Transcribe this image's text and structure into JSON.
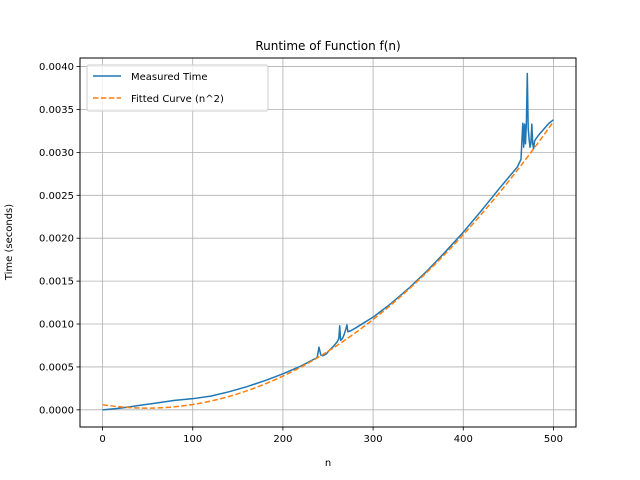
{
  "chart_data": {
    "type": "line",
    "title": "Runtime of Function f(n)",
    "xlabel": "n",
    "ylabel": "Time (seconds)",
    "xlim": [
      -25,
      525
    ],
    "ylim": [
      -0.0002,
      0.0041
    ],
    "xticks": [
      0,
      100,
      200,
      300,
      400,
      500
    ],
    "xtick_labels": [
      "0",
      "100",
      "200",
      "300",
      "400",
      "500"
    ],
    "yticks": [
      0.0,
      0.0005,
      0.001,
      0.0015,
      0.002,
      0.0025,
      0.003,
      0.0035,
      0.004
    ],
    "ytick_labels": [
      "0.0000",
      "0.0005",
      "0.0010",
      "0.0015",
      "0.0020",
      "0.0025",
      "0.0030",
      "0.0035",
      "0.0040"
    ],
    "grid": true,
    "legend_position": "top-left",
    "series": [
      {
        "name": "Measured Time",
        "color": "#1f77b4",
        "style": "solid",
        "x": [
          0,
          20,
          40,
          60,
          80,
          100,
          120,
          140,
          160,
          180,
          200,
          220,
          238,
          240,
          242,
          244,
          248,
          252,
          256,
          260,
          262,
          263,
          264,
          266,
          268,
          270,
          271,
          272,
          275,
          280,
          300,
          320,
          340,
          360,
          380,
          400,
          420,
          440,
          460,
          464,
          466,
          467,
          468,
          469,
          470,
          471,
          472,
          473,
          474,
          475,
          476,
          477,
          478,
          479,
          480,
          482,
          485,
          490,
          495,
          500
        ],
        "y": [
          0.0,
          2e-05,
          5e-05,
          8e-05,
          0.00011,
          0.00013,
          0.00016,
          0.00021,
          0.00027,
          0.00034,
          0.00042,
          0.00051,
          0.00061,
          0.00073,
          0.00064,
          0.00063,
          0.00065,
          0.0007,
          0.00074,
          0.00079,
          0.00083,
          0.00098,
          0.00081,
          0.00083,
          0.00088,
          0.00095,
          0.00099,
          0.00091,
          0.00092,
          0.00095,
          0.00108,
          0.00124,
          0.00142,
          0.00162,
          0.00184,
          0.00207,
          0.00232,
          0.00258,
          0.00283,
          0.00292,
          0.00334,
          0.00306,
          0.00333,
          0.0031,
          0.00335,
          0.00392,
          0.00328,
          0.00315,
          0.00306,
          0.00311,
          0.00333,
          0.0031,
          0.00304,
          0.00313,
          0.00315,
          0.00318,
          0.00322,
          0.00328,
          0.00334,
          0.00338
        ]
      },
      {
        "name": "Fitted Curve (n^2)",
        "color": "#ff7f0e",
        "style": "dashed",
        "function": "quadratic",
        "coefficients": {
          "a": 1.644e-08,
          "b": -1.622e-06,
          "c": 6e-05
        }
      }
    ]
  }
}
